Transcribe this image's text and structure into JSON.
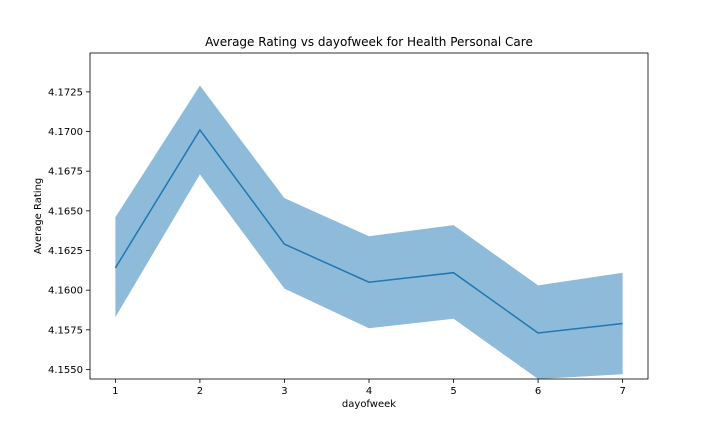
{
  "chart_data": {
    "type": "line",
    "title": "Average Rating vs dayofweek for Health Personal Care",
    "xlabel": "dayofweek",
    "ylabel": "Average Rating",
    "x": [
      1,
      2,
      3,
      4,
      5,
      6,
      7
    ],
    "xlim": [
      0.7,
      7.3
    ],
    "ylim": [
      4.1544,
      4.17495
    ],
    "yticks": [
      4.155,
      4.1575,
      4.16,
      4.1625,
      4.165,
      4.1675,
      4.17,
      4.1725
    ],
    "ytick_labels": [
      "4.1550",
      "4.1575",
      "4.1600",
      "4.1625",
      "4.1650",
      "4.1675",
      "4.1700",
      "4.1725"
    ],
    "series": [
      {
        "values": [
          4.1614,
          4.1701,
          4.1629,
          4.1605,
          4.1611,
          4.1573,
          4.1579
        ],
        "lower": [
          4.1583,
          4.1673,
          4.1601,
          4.1576,
          4.1582,
          4.1544,
          4.1547
        ],
        "upper": [
          4.1646,
          4.1729,
          4.1658,
          4.1634,
          4.1641,
          4.1603,
          4.1611
        ],
        "color": "#1f77b4",
        "band_color": "#8fbbda"
      }
    ],
    "grid": false
  }
}
